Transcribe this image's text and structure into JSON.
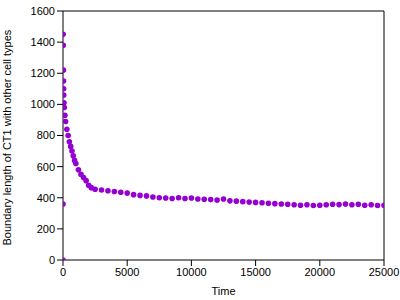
{
  "chart_data": {
    "type": "scatter",
    "x_label": "Time",
    "y_label": "Boundary length of CT1 with other cell types",
    "color": "#9400d3",
    "marker": "circle",
    "grid": false,
    "xlim": [
      0,
      25000
    ],
    "ylim": [
      0,
      1600
    ],
    "xticks": [
      0,
      5000,
      10000,
      15000,
      20000,
      25000
    ],
    "yticks": [
      0,
      200,
      400,
      600,
      800,
      1000,
      1200,
      1400,
      1600
    ],
    "x": [
      0,
      0,
      10,
      20,
      30,
      40,
      50,
      60,
      80,
      100,
      150,
      200,
      300,
      400,
      500,
      600,
      700,
      800,
      900,
      1000,
      1200,
      1400,
      1600,
      1800,
      2000,
      2200,
      2500,
      3000,
      3500,
      4000,
      4500,
      5000,
      5500,
      6000,
      6500,
      7000,
      7500,
      8000,
      8500,
      9000,
      9500,
      10000,
      10500,
      11000,
      11500,
      12000,
      12500,
      13000,
      13500,
      14000,
      14500,
      15000,
      15500,
      16000,
      16500,
      17000,
      17500,
      18000,
      18500,
      19000,
      19500,
      20000,
      20500,
      21000,
      21500,
      22000,
      22500,
      23000,
      23500,
      24000,
      24500,
      25000
    ],
    "values": [
      0,
      360,
      1450,
      1380,
      1220,
      1150,
      1100,
      1060,
      1010,
      980,
      930,
      890,
      840,
      800,
      760,
      730,
      700,
      670,
      640,
      620,
      580,
      550,
      530,
      510,
      480,
      465,
      455,
      450,
      445,
      440,
      435,
      430,
      420,
      415,
      412,
      405,
      400,
      398,
      395,
      400,
      395,
      398,
      392,
      390,
      388,
      385,
      392,
      380,
      378,
      375,
      372,
      370,
      368,
      365,
      362,
      360,
      358,
      355,
      352,
      355,
      350,
      352,
      355,
      358,
      356,
      360,
      355,
      358,
      352,
      355,
      350,
      352
    ]
  }
}
